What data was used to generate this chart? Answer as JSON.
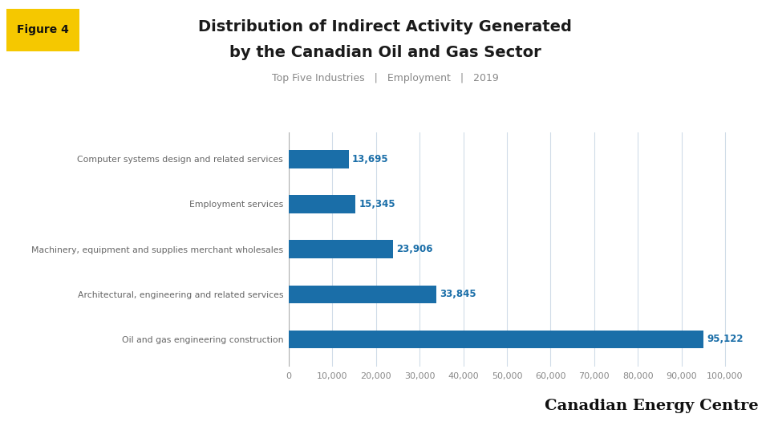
{
  "title_line1": "Distribution of Indirect Activity Generated",
  "title_line2": "by the Canadian Oil and Gas Sector",
  "subtitle": "Top Five Industries   |   Employment   |   2019",
  "figure_label": "Figure 4",
  "categories": [
    "Oil and gas engineering construction",
    "Architectural, engineering and related services",
    "Machinery, equipment and supplies merchant wholesales",
    "Employment services",
    "Computer systems design and related services"
  ],
  "values": [
    95122,
    33845,
    23906,
    15345,
    13695
  ],
  "bar_color": "#1a6ea8",
  "value_color": "#1a6ea8",
  "background_color": "#FFFFFF",
  "grid_color": "#d0dce8",
  "title_color": "#1a1a1a",
  "subtitle_color": "#888888",
  "label_color": "#666666",
  "xlim": [
    0,
    105000
  ],
  "xticks": [
    0,
    10000,
    20000,
    30000,
    40000,
    50000,
    60000,
    70000,
    80000,
    90000,
    100000
  ],
  "xtick_labels": [
    "0",
    "10,000",
    "20,000",
    "30,000",
    "40,000",
    "50,000",
    "60,000",
    "70,000",
    "80,000",
    "90,000",
    "100,000"
  ],
  "figure_label_bg": "#F5C800",
  "branding_text": "Canadian Energy Centre",
  "branding_color": "#111111"
}
